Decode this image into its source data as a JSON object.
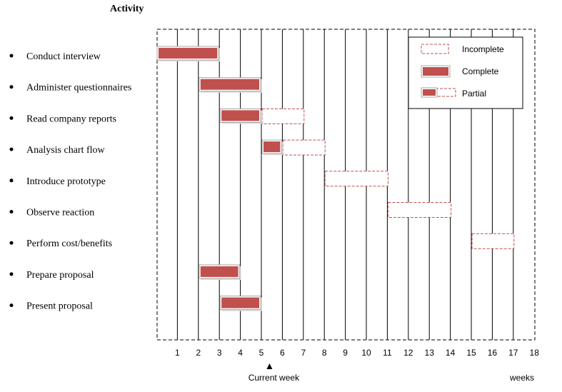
{
  "chart_data": {
    "type": "gantt",
    "header": "Activity",
    "x_ticks": [
      "1",
      "2",
      "3",
      "4",
      "5",
      "6",
      "7",
      "8",
      "9",
      "10",
      "11",
      "12",
      "13",
      "14",
      "15",
      "16",
      "17",
      "18"
    ],
    "x_unit_label": "weeks",
    "current_week": {
      "value": 6,
      "label": "Current week"
    },
    "activities": [
      {
        "name": "Conduct interview",
        "complete": [
          0,
          3
        ],
        "incomplete": null
      },
      {
        "name": "Administer questionnaires",
        "complete": [
          2,
          5
        ],
        "incomplete": null
      },
      {
        "name": "Read company reports",
        "complete": [
          3,
          5
        ],
        "incomplete": [
          5,
          7
        ]
      },
      {
        "name": "Analysis chart flow",
        "complete": [
          5,
          6
        ],
        "incomplete": [
          6,
          8
        ]
      },
      {
        "name": "Introduce prototype",
        "complete": null,
        "incomplete": [
          8,
          11
        ]
      },
      {
        "name": "Observe reaction",
        "complete": null,
        "incomplete": [
          11,
          14
        ]
      },
      {
        "name": "Perform cost/benefits",
        "complete": null,
        "incomplete": [
          15,
          17
        ]
      },
      {
        "name": "Prepare proposal",
        "complete": [
          2,
          4
        ],
        "incomplete": null
      },
      {
        "name": "Present proposal",
        "complete": [
          3,
          5
        ],
        "incomplete": null
      }
    ],
    "legend": {
      "placement": "top-right",
      "items": [
        {
          "kind": "incomplete",
          "label": "Incomplete"
        },
        {
          "kind": "complete",
          "label": "Complete"
        },
        {
          "kind": "partial",
          "label": "Partial"
        }
      ]
    },
    "colors": {
      "complete": "#c0504d",
      "incomplete_border": "#c0504d",
      "grid": "#000000"
    }
  }
}
